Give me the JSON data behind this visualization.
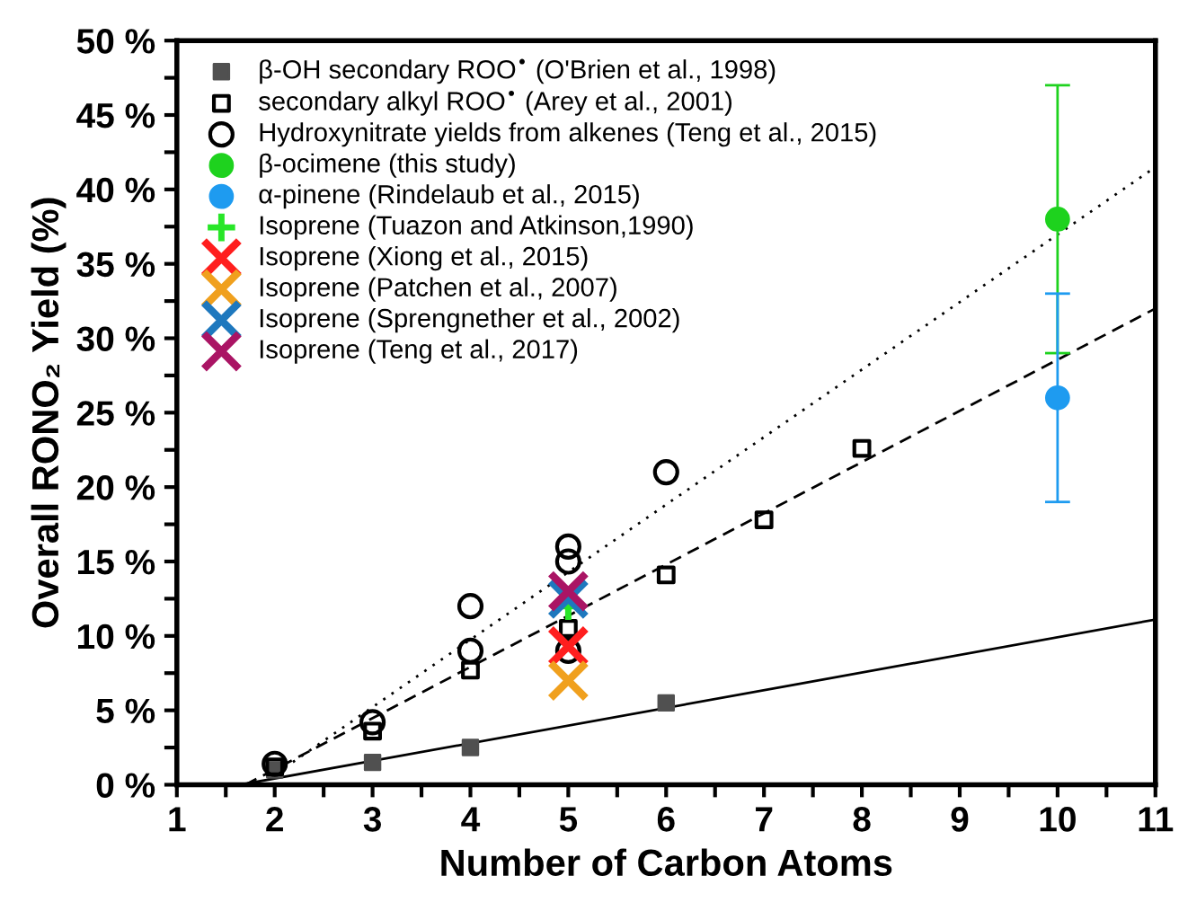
{
  "chart_data": {
    "type": "scatter",
    "xlabel": "Number of Carbon Atoms",
    "ylabel": "Overall RONO₂ Yield (%)",
    "xlim": [
      1,
      11
    ],
    "ylim": [
      0,
      50
    ],
    "xticks": [
      1,
      {
        "value": 1.5,
        "label": null
      },
      2,
      {
        "value": 2.5,
        "label": null
      },
      3,
      {
        "value": 3.5,
        "label": null
      },
      4,
      {
        "value": 4.5,
        "label": null
      },
      5,
      {
        "value": 5.5,
        "label": null
      },
      6,
      {
        "value": 6.5,
        "label": null
      },
      7,
      {
        "value": 7.5,
        "label": null
      },
      8,
      {
        "value": 8.5,
        "label": null
      },
      9,
      {
        "value": 9.5,
        "label": null
      },
      10,
      {
        "value": 10.5,
        "label": null
      },
      11
    ],
    "yticks": [
      {
        "value": 0,
        "label": "0 %"
      },
      {
        "value": 2.5,
        "label": null
      },
      {
        "value": 5,
        "label": "5 %"
      },
      {
        "value": 7.5,
        "label": null
      },
      {
        "value": 10,
        "label": "10 %"
      },
      {
        "value": 12.5,
        "label": null
      },
      {
        "value": 15,
        "label": "15 %"
      },
      {
        "value": 17.5,
        "label": null
      },
      {
        "value": 20,
        "label": "20 %"
      },
      {
        "value": 22.5,
        "label": null
      },
      {
        "value": 25,
        "label": "25 %"
      },
      {
        "value": 27.5,
        "label": null
      },
      {
        "value": 30,
        "label": "30 %"
      },
      {
        "value": 32.5,
        "label": null
      },
      {
        "value": 35,
        "label": "35 %"
      },
      {
        "value": 37.5,
        "label": null
      },
      {
        "value": 40,
        "label": "40 %"
      },
      {
        "value": 42.5,
        "label": null
      },
      {
        "value": 45,
        "label": "45 %"
      },
      {
        "value": 47.5,
        "label": null
      },
      {
        "value": 50,
        "label": "50 %"
      }
    ],
    "grid": false,
    "legend": "top left",
    "series": [
      {
        "name": "β-OH secondary ROO$^{•}$ (O'Brien et al., 1998)",
        "color": "#505050",
        "marker": "square",
        "x": [
          2,
          3,
          4,
          6
        ],
        "values": [
          1.0,
          1.5,
          2.5,
          5.5
        ]
      },
      {
        "name": "secondary alkyl ROO$^{•}$ (Arey et al., 2001)",
        "color": "#000000",
        "marker": "square",
        "x": [
          2,
          3,
          4,
          5,
          6,
          7,
          8
        ],
        "values": [
          1.2,
          3.6,
          7.7,
          10.5,
          14.1,
          17.8,
          22.6
        ]
      },
      {
        "name": "Hydroxynitrate yields from alkenes (Teng et al., 2015)",
        "color": "#000000",
        "marker": "circle",
        "x": [
          2,
          3,
          4,
          4,
          5,
          5,
          5,
          6
        ],
        "values": [
          1.4,
          4.2,
          9,
          12,
          9,
          15,
          16,
          21
        ]
      },
      {
        "name": "β-ocimene (this study)",
        "color": "#1ed21e",
        "marker": "circle",
        "x": [
          10
        ],
        "values": [
          38
        ],
        "errors": [
          [
            29,
            47
          ]
        ]
      },
      {
        "name": "α-pinene (Rindelaub et al., 2015)",
        "color": "#1e9bf0",
        "marker": "circle",
        "x": [
          10
        ],
        "values": [
          26
        ],
        "errors": [
          [
            19,
            33
          ]
        ]
      },
      {
        "name": "Isoprene (Tuazon and Atkinson,1990)",
        "color": "#28e628",
        "marker": "plus",
        "x": [
          5
        ],
        "values": [
          12
        ]
      },
      {
        "name": "Isoprene (Xiong et al., 2015)",
        "color": "#ff1e1e",
        "marker": "cross",
        "x": [
          5
        ],
        "values": [
          9.3
        ]
      },
      {
        "name": "Isoprene (Patchen et al., 2007)",
        "color": "#f0a01e",
        "marker": "cross",
        "x": [
          5
        ],
        "values": [
          7
        ]
      },
      {
        "name": "Isoprene (Sprengnether et al., 2002)",
        "color": "#1e78be",
        "marker": "cross",
        "x": [
          5
        ],
        "values": [
          12.5
        ]
      },
      {
        "name": "Isoprene (Teng et al., 2017)",
        "color": "#aa1464",
        "marker": "cross",
        "x": [
          5
        ],
        "values": [
          13
        ]
      },
      {
        "type": "line",
        "color": "#000000",
        "line_style": "solid",
        "x": [
          1.65,
          11
        ],
        "values": [
          0,
          11.1
        ]
      },
      {
        "type": "line",
        "color": "#000000",
        "line_style": "dashed",
        "x": [
          1.7,
          11
        ],
        "values": [
          0,
          32
        ]
      },
      {
        "type": "line",
        "color": "#000000",
        "line_style": "dotted",
        "x": [
          1.85,
          11
        ],
        "values": [
          0,
          41.5
        ]
      }
    ]
  }
}
